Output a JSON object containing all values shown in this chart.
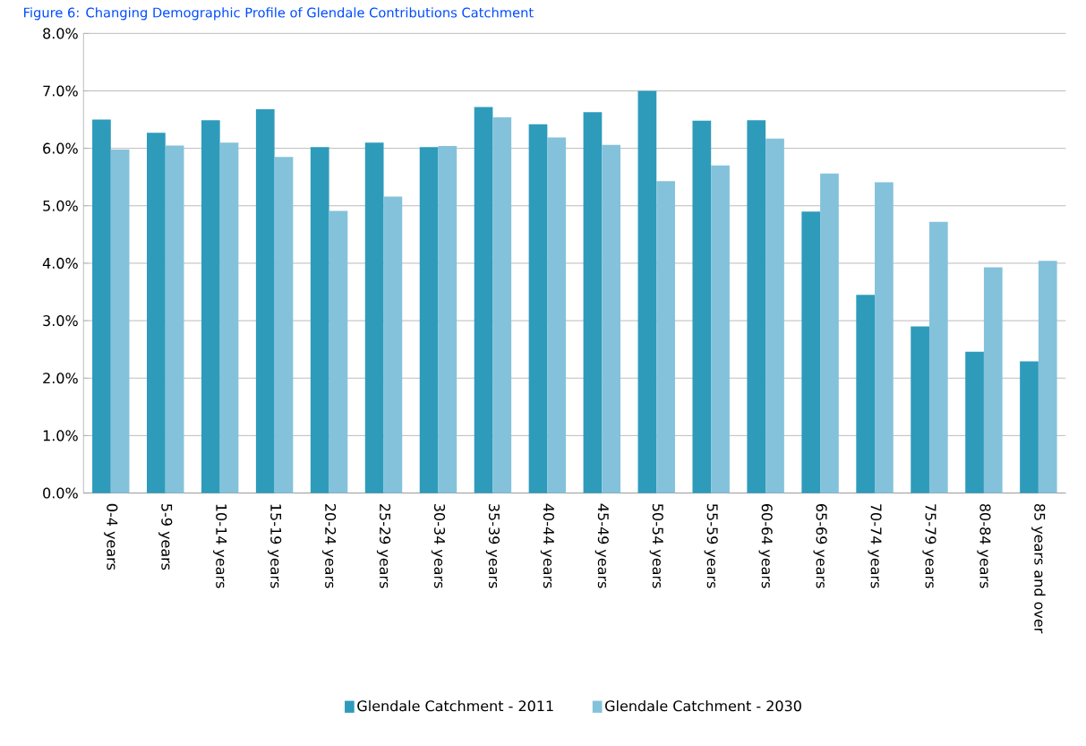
{
  "chart_data": {
    "type": "bar",
    "title": "Figure 6: Changing Demographic Profile of Glendale Contributions Catchment",
    "categories": [
      "0-4 years",
      "5-9 years",
      "10-14 years",
      "15-19 years",
      "20-24 years",
      "25-29 years",
      "30-34 years",
      "35-39 years",
      "40-44 years",
      "45-49 years",
      "50-54 years",
      "55-59 years",
      "60-64 years",
      "65-69 years",
      "70-74 years",
      "75-79 years",
      "80-84 years",
      "85 years and over"
    ],
    "series": [
      {
        "name": "Glendale Catchment - 2011",
        "color": "#2e9bbb",
        "values": [
          6.5,
          6.27,
          6.49,
          6.68,
          6.02,
          6.1,
          6.02,
          6.72,
          6.42,
          6.63,
          7.0,
          6.48,
          6.49,
          4.9,
          3.45,
          2.9,
          2.46,
          2.29
        ]
      },
      {
        "name": "Glendale Catchment - 2030",
        "color": "#84c2db",
        "values": [
          5.98,
          6.05,
          6.1,
          5.85,
          4.91,
          5.16,
          6.04,
          6.54,
          6.19,
          6.06,
          5.43,
          5.7,
          6.17,
          5.56,
          5.41,
          4.72,
          3.93,
          4.04
        ]
      }
    ],
    "ylim": [
      0,
      8
    ],
    "yticks": [
      {
        "value": 0,
        "label": "0.0%"
      },
      {
        "value": 1,
        "label": "1.0%"
      },
      {
        "value": 2,
        "label": "2.0%"
      },
      {
        "value": 3,
        "label": "3.0%"
      },
      {
        "value": 4,
        "label": "4.0%"
      },
      {
        "value": 5,
        "label": "5.0%"
      },
      {
        "value": 6,
        "label": "6.0%"
      },
      {
        "value": 7,
        "label": "7.0%"
      },
      {
        "value": 8,
        "label": "8.0%"
      }
    ],
    "grid": "y",
    "legend": "bottom"
  }
}
